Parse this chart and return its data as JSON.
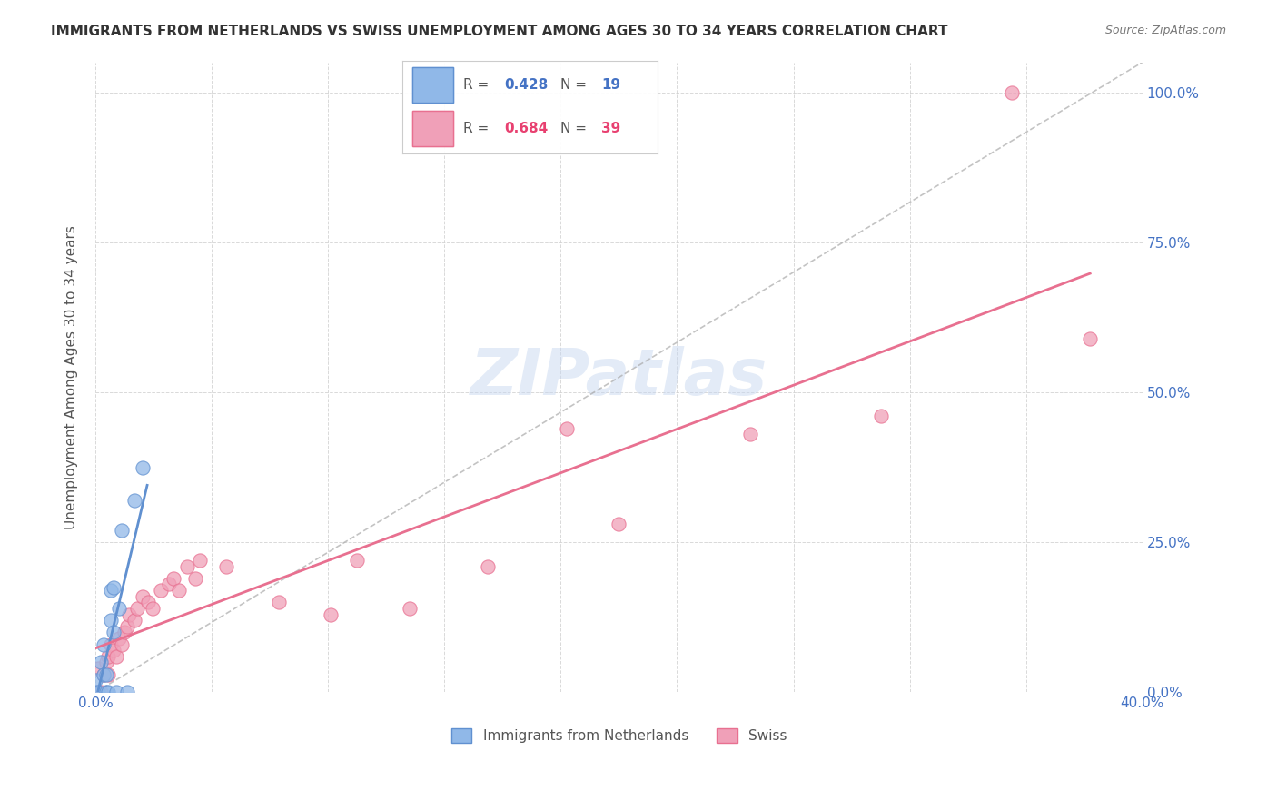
{
  "title": "IMMIGRANTS FROM NETHERLANDS VS SWISS UNEMPLOYMENT AMONG AGES 30 TO 34 YEARS CORRELATION CHART",
  "source": "Source: ZipAtlas.com",
  "ylabel_label": "Unemployment Among Ages 30 to 34 years",
  "xlim": [
    0.0,
    0.4
  ],
  "ylim": [
    0.0,
    1.05
  ],
  "legend1_r": "0.428",
  "legend1_n": "19",
  "legend2_r": "0.684",
  "legend2_n": "39",
  "color_blue": "#90b8e8",
  "color_pink": "#f0a0b8",
  "color_blue_line": "#6090d0",
  "color_pink_line": "#e87090",
  "color_blue_dark": "#4472c4",
  "color_pink_dark": "#e84070",
  "watermark": "ZIPatlas",
  "netherlands_x": [
    0.0,
    0.0,
    0.001,
    0.002,
    0.003,
    0.003,
    0.004,
    0.004,
    0.005,
    0.006,
    0.006,
    0.007,
    0.007,
    0.008,
    0.009,
    0.01,
    0.012,
    0.015,
    0.018
  ],
  "netherlands_y": [
    0.0,
    0.02,
    0.0,
    0.05,
    0.08,
    0.03,
    0.0,
    0.03,
    0.0,
    0.12,
    0.17,
    0.1,
    0.175,
    0.0,
    0.14,
    0.27,
    0.0,
    0.32,
    0.375
  ],
  "swiss_x": [
    0.0,
    0.001,
    0.002,
    0.003,
    0.004,
    0.005,
    0.005,
    0.006,
    0.007,
    0.008,
    0.009,
    0.01,
    0.011,
    0.012,
    0.013,
    0.015,
    0.016,
    0.018,
    0.02,
    0.022,
    0.025,
    0.028,
    0.03,
    0.032,
    0.035,
    0.038,
    0.04,
    0.05,
    0.07,
    0.09,
    0.1,
    0.12,
    0.15,
    0.18,
    0.2,
    0.25,
    0.3,
    0.35,
    0.38
  ],
  "swiss_y": [
    0.0,
    0.04,
    0.0,
    0.03,
    0.05,
    0.03,
    0.06,
    0.08,
    0.07,
    0.06,
    0.09,
    0.08,
    0.1,
    0.11,
    0.13,
    0.12,
    0.14,
    0.16,
    0.15,
    0.14,
    0.17,
    0.18,
    0.19,
    0.17,
    0.21,
    0.19,
    0.22,
    0.21,
    0.15,
    0.13,
    0.22,
    0.14,
    0.21,
    0.44,
    0.28,
    0.43,
    0.46,
    1.0,
    0.59
  ],
  "background_color": "#ffffff",
  "grid_color": "#d0d0d0"
}
